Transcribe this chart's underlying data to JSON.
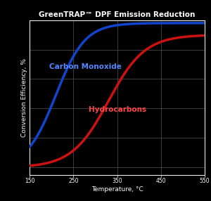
{
  "title": "GreenTRAP™ DPF Emission Reduction",
  "xlabel": "Temperature, °C",
  "ylabel": "Conversion Efficiency, %",
  "background_color": "#000000",
  "text_color": "#ffffff",
  "grid_color": "#555555",
  "co_color": "#1144cc",
  "hc_color": "#cc1111",
  "co_label": "Carbon Monoxide",
  "hc_label": "Hydrocarbons",
  "co_label_color": "#5588ff",
  "hc_label_color": "#ff4444",
  "xmin": 150,
  "xmax": 550,
  "ymin": -5,
  "ymax": 100,
  "xticks": [
    150,
    250,
    350,
    450,
    550
  ],
  "yticks": [],
  "co_midpoint": 210,
  "co_steepness": 0.03,
  "hc_midpoint": 330,
  "hc_steepness": 0.024,
  "co_ymax": 98,
  "hc_ymax": 90,
  "title_fontsize": 7.5,
  "axis_label_fontsize": 6.5,
  "tick_fontsize": 5.5,
  "annotation_fontsize": 7.5
}
